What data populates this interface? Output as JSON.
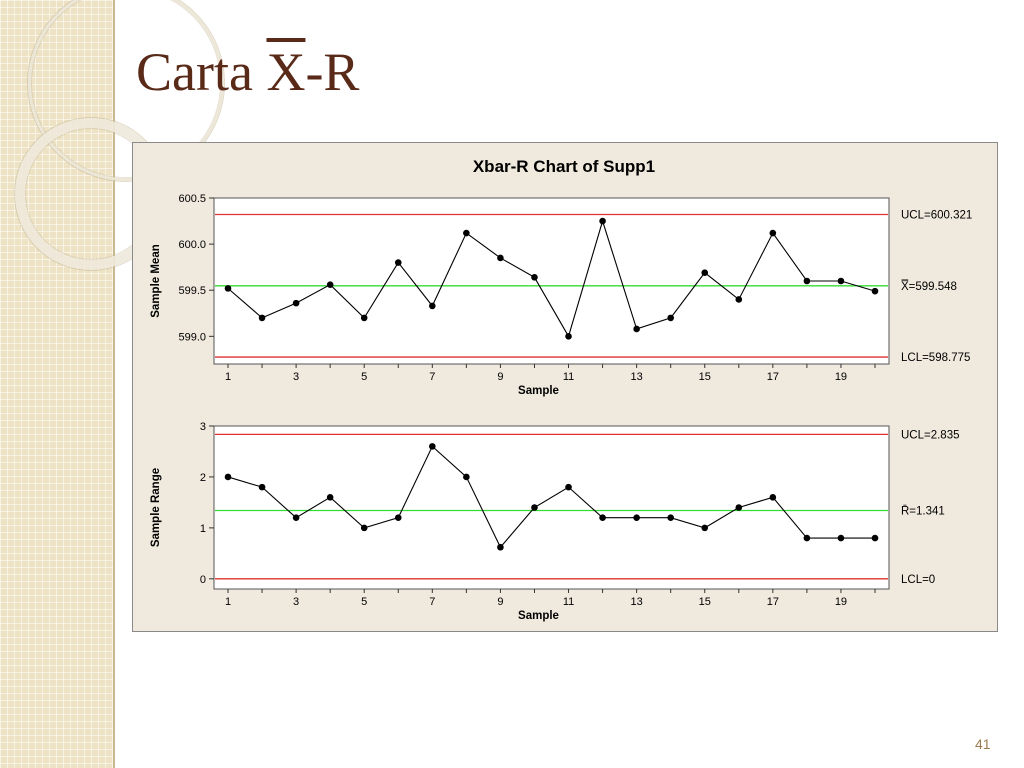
{
  "slide": {
    "title_prefix": "Carta ",
    "title_xbar": "X",
    "title_suffix": "-R",
    "page_number": "41"
  },
  "chart_data": {
    "type": "line",
    "title": "Xbar-R Chart of Supp1",
    "x": [
      1,
      2,
      3,
      4,
      5,
      6,
      7,
      8,
      9,
      10,
      11,
      12,
      13,
      14,
      15,
      16,
      17,
      18,
      19,
      20
    ],
    "x_tick_labels": [
      "1",
      "3",
      "5",
      "7",
      "9",
      "11",
      "13",
      "15",
      "17",
      "19"
    ],
    "panels": [
      {
        "ylabel": "Sample Mean",
        "xlabel": "Sample",
        "ylim": [
          598.7,
          600.5
        ],
        "y_ticks": [
          599.0,
          599.5,
          600.0,
          600.5
        ],
        "y_tick_labels": [
          "599.0",
          "599.5",
          "600.0",
          "600.5"
        ],
        "series": [
          {
            "values": [
              599.52,
              599.2,
              599.36,
              599.56,
              599.2,
              599.8,
              599.33,
              600.12,
              599.85,
              599.64,
              599.0,
              600.25,
              599.08,
              599.2,
              599.69,
              599.4,
              600.12,
              599.6,
              599.6,
              599.49
            ],
            "color": "#000000"
          }
        ],
        "control_lines": [
          {
            "label": "UCL=600.321",
            "value": 600.321,
            "color": "#e03030"
          },
          {
            "label": "X̿=599.548",
            "value": 599.548,
            "color": "#33dd33"
          },
          {
            "label": "LCL=598.775",
            "value": 598.775,
            "color": "#e03030"
          }
        ]
      },
      {
        "ylabel": "Sample Range",
        "xlabel": "Sample",
        "ylim": [
          -0.2,
          3.0
        ],
        "y_ticks": [
          0,
          1,
          2,
          3
        ],
        "y_tick_labels": [
          "0",
          "1",
          "2",
          "3"
        ],
        "series": [
          {
            "values": [
              2.0,
              1.8,
              1.2,
              1.6,
              1.0,
              1.2,
              2.6,
              2.0,
              0.62,
              1.4,
              1.8,
              1.2,
              1.2,
              1.2,
              1.0,
              1.4,
              1.6,
              0.8,
              0.8,
              0.8
            ],
            "color": "#000000"
          }
        ],
        "control_lines": [
          {
            "label": "UCL=2.835",
            "value": 2.835,
            "color": "#e03030"
          },
          {
            "label": "R̄=1.341",
            "value": 1.341,
            "color": "#33dd33"
          },
          {
            "label": "LCL=0",
            "value": 0,
            "color": "#e03030"
          }
        ]
      }
    ],
    "grid": false
  }
}
